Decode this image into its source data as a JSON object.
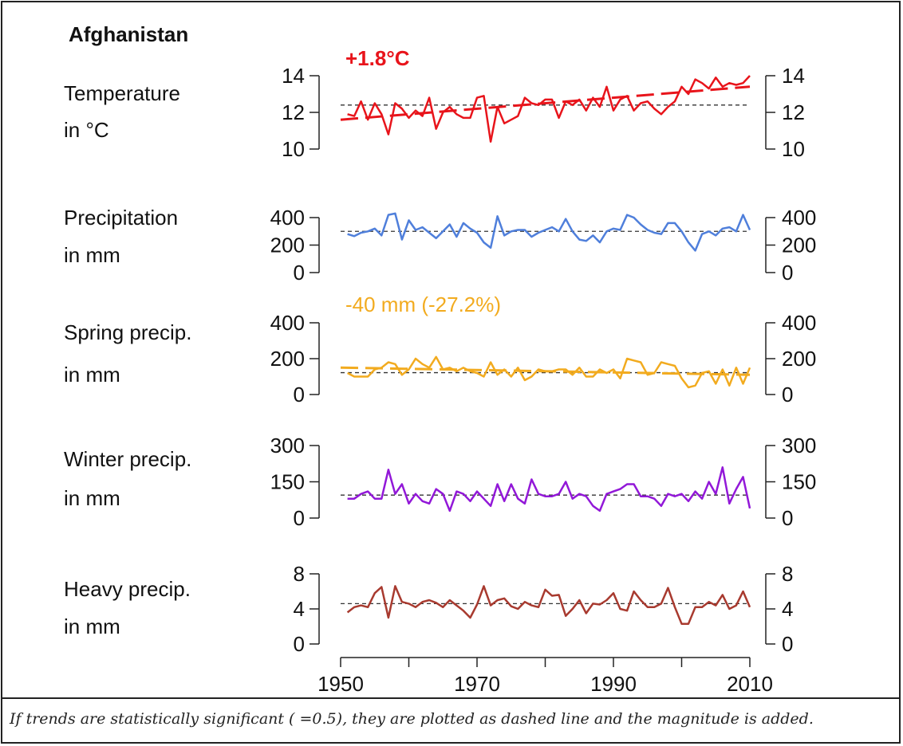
{
  "title": "Afghanistan",
  "caption": "If trends are statistically significant (  =0.5), they are plotted as dashed line and the magnitude is added.",
  "chart_data": [
    {
      "type": "line",
      "label": [
        "Temperature",
        "in °C"
      ],
      "color": "#e8141b",
      "ylim": [
        10,
        14
      ],
      "yticks": [
        "10",
        "12",
        "14"
      ],
      "trend_label": "+1.8°C",
      "baseline": 12.4,
      "trend": [
        11.6,
        13.4
      ],
      "x": [
        1951,
        1952,
        1953,
        1954,
        1955,
        1956,
        1957,
        1958,
        1959,
        1960,
        1961,
        1962,
        1963,
        1964,
        1965,
        1966,
        1967,
        1968,
        1969,
        1970,
        1971,
        1972,
        1973,
        1974,
        1975,
        1976,
        1977,
        1978,
        1979,
        1980,
        1981,
        1982,
        1983,
        1984,
        1985,
        1986,
        1987,
        1988,
        1989,
        1990,
        1991,
        1992,
        1993,
        1994,
        1995,
        1996,
        1997,
        1998,
        1999,
        2000,
        2001,
        2002,
        2003,
        2004,
        2005,
        2006,
        2007,
        2008,
        2009,
        2010
      ],
      "values": [
        11.9,
        11.8,
        12.6,
        11.6,
        12.5,
        11.9,
        10.8,
        12.5,
        12.2,
        11.7,
        12.1,
        11.8,
        12.8,
        11.1,
        12.0,
        12.3,
        11.9,
        11.7,
        11.7,
        12.8,
        12.9,
        10.4,
        12.3,
        11.4,
        11.6,
        11.8,
        12.8,
        12.5,
        12.4,
        12.7,
        12.7,
        11.7,
        12.6,
        12.4,
        12.7,
        12.1,
        12.8,
        12.3,
        13.4,
        12.1,
        12.7,
        12.9,
        12.1,
        12.5,
        12.6,
        12.2,
        11.9,
        12.3,
        12.6,
        13.4,
        13.0,
        13.8,
        13.6,
        13.3,
        13.9,
        13.4,
        13.6,
        13.5,
        13.6,
        14.0
      ]
    },
    {
      "type": "line",
      "label": [
        "Precipitation",
        "in mm"
      ],
      "color": "#4f7fdb",
      "ylim": [
        0,
        400
      ],
      "yticks": [
        "0",
        "200",
        "400"
      ],
      "trend_label": "",
      "baseline": 300,
      "x": [
        1951,
        1952,
        1953,
        1954,
        1955,
        1956,
        1957,
        1958,
        1959,
        1960,
        1961,
        1962,
        1963,
        1964,
        1965,
        1966,
        1967,
        1968,
        1969,
        1970,
        1971,
        1972,
        1973,
        1974,
        1975,
        1976,
        1977,
        1978,
        1979,
        1980,
        1981,
        1982,
        1983,
        1984,
        1985,
        1986,
        1987,
        1988,
        1989,
        1990,
        1991,
        1992,
        1993,
        1994,
        1995,
        1996,
        1997,
        1998,
        1999,
        2000,
        2001,
        2002,
        2003,
        2004,
        2005,
        2006,
        2007,
        2008,
        2009,
        2010
      ],
      "values": [
        280,
        265,
        290,
        300,
        320,
        270,
        420,
        430,
        240,
        380,
        310,
        330,
        290,
        250,
        300,
        350,
        260,
        360,
        320,
        290,
        220,
        180,
        410,
        270,
        300,
        310,
        310,
        260,
        290,
        310,
        330,
        300,
        390,
        300,
        240,
        230,
        270,
        220,
        300,
        320,
        310,
        420,
        400,
        350,
        310,
        290,
        280,
        360,
        360,
        300,
        220,
        160,
        280,
        300,
        270,
        320,
        330,
        300,
        420,
        310
      ]
    },
    {
      "type": "line",
      "label": [
        "Spring precip.",
        "in mm"
      ],
      "color": "#f2ab1f",
      "ylim": [
        0,
        400
      ],
      "yticks": [
        "0",
        "200",
        "400"
      ],
      "trend_label": "-40 mm (-27.2%)",
      "baseline": 122,
      "trend": [
        150,
        110
      ],
      "x": [
        1951,
        1952,
        1953,
        1954,
        1955,
        1956,
        1957,
        1958,
        1959,
        1960,
        1961,
        1962,
        1963,
        1964,
        1965,
        1966,
        1967,
        1968,
        1969,
        1970,
        1971,
        1972,
        1973,
        1974,
        1975,
        1976,
        1977,
        1978,
        1979,
        1980,
        1981,
        1982,
        1983,
        1984,
        1985,
        1986,
        1987,
        1988,
        1989,
        1990,
        1991,
        1992,
        1993,
        1994,
        1995,
        1996,
        1997,
        1998,
        1999,
        2000,
        2001,
        2002,
        2003,
        2004,
        2005,
        2006,
        2007,
        2008,
        2009,
        2010
      ],
      "values": [
        120,
        100,
        100,
        100,
        140,
        150,
        180,
        170,
        110,
        140,
        200,
        170,
        150,
        210,
        140,
        150,
        130,
        150,
        130,
        120,
        100,
        180,
        110,
        140,
        100,
        150,
        80,
        100,
        140,
        130,
        130,
        140,
        140,
        110,
        150,
        100,
        100,
        140,
        120,
        140,
        90,
        200,
        190,
        180,
        110,
        120,
        180,
        170,
        160,
        90,
        40,
        50,
        120,
        130,
        60,
        140,
        50,
        150,
        60,
        150
      ]
    },
    {
      "type": "line",
      "label": [
        "Winter precip.",
        "in mm"
      ],
      "color": "#9218d8",
      "ylim": [
        0,
        300
      ],
      "yticks": [
        "0",
        "150",
        "300"
      ],
      "trend_label": "",
      "baseline": 95,
      "x": [
        1951,
        1952,
        1953,
        1954,
        1955,
        1956,
        1957,
        1958,
        1959,
        1960,
        1961,
        1962,
        1963,
        1964,
        1965,
        1966,
        1967,
        1968,
        1969,
        1970,
        1971,
        1972,
        1973,
        1974,
        1975,
        1976,
        1977,
        1978,
        1979,
        1980,
        1981,
        1982,
        1983,
        1984,
        1985,
        1986,
        1987,
        1988,
        1989,
        1990,
        1991,
        1992,
        1993,
        1994,
        1995,
        1996,
        1997,
        1998,
        1999,
        2000,
        2001,
        2002,
        2003,
        2004,
        2005,
        2006,
        2007,
        2008,
        2009,
        2010
      ],
      "values": [
        80,
        80,
        100,
        110,
        80,
        80,
        200,
        100,
        140,
        60,
        100,
        70,
        60,
        120,
        100,
        30,
        110,
        100,
        70,
        110,
        80,
        50,
        140,
        70,
        140,
        80,
        60,
        160,
        100,
        90,
        90,
        100,
        150,
        80,
        100,
        90,
        50,
        30,
        100,
        110,
        120,
        140,
        140,
        90,
        90,
        80,
        50,
        100,
        90,
        100,
        70,
        110,
        80,
        150,
        100,
        210,
        60,
        120,
        170,
        40
      ]
    },
    {
      "type": "line",
      "label": [
        "Heavy precip.",
        "in mm"
      ],
      "color": "#a83a2f",
      "ylim": [
        0,
        8
      ],
      "yticks": [
        "0",
        "4",
        "8"
      ],
      "trend_label": "",
      "baseline": 4.6,
      "x": [
        1951,
        1952,
        1953,
        1954,
        1955,
        1956,
        1957,
        1958,
        1959,
        1960,
        1961,
        1962,
        1963,
        1964,
        1965,
        1966,
        1967,
        1968,
        1969,
        1970,
        1971,
        1972,
        1973,
        1974,
        1975,
        1976,
        1977,
        1978,
        1979,
        1980,
        1981,
        1982,
        1983,
        1984,
        1985,
        1986,
        1987,
        1988,
        1989,
        1990,
        1991,
        1992,
        1993,
        1994,
        1995,
        1996,
        1997,
        1998,
        1999,
        2000,
        2001,
        2002,
        2003,
        2004,
        2005,
        2006,
        2007,
        2008,
        2009,
        2010
      ],
      "values": [
        3.6,
        4.2,
        4.4,
        4.2,
        5.8,
        6.5,
        3.0,
        6.6,
        4.8,
        4.6,
        4.2,
        4.8,
        5.0,
        4.7,
        4.2,
        5.0,
        4.4,
        3.8,
        3.0,
        4.5,
        6.6,
        4.4,
        5.0,
        5.2,
        4.3,
        4.0,
        4.8,
        4.4,
        4.2,
        6.2,
        5.5,
        5.6,
        3.2,
        4.0,
        5.0,
        3.5,
        4.6,
        4.5,
        5.0,
        5.8,
        4.0,
        3.8,
        6.0,
        5.0,
        4.2,
        4.2,
        4.6,
        6.4,
        4.2,
        2.3,
        2.3,
        4.2,
        4.2,
        4.8,
        4.4,
        5.6,
        4.0,
        4.4,
        6.0,
        4.2
      ]
    }
  ],
  "x_axis": {
    "ticks": [
      "1950",
      "1970",
      "1990",
      "2010"
    ],
    "tick_years": [
      1950,
      1970,
      1990,
      2010
    ],
    "minor_years": [
      1960,
      1980,
      2000
    ]
  }
}
